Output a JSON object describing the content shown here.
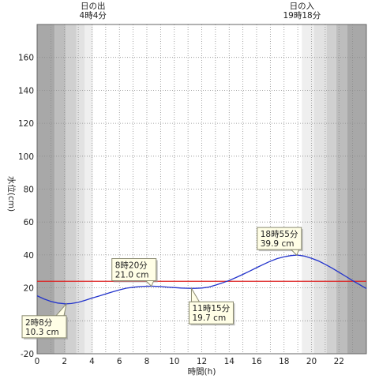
{
  "chart_data": {
    "type": "line",
    "title": "",
    "xlabel": "時間(h)",
    "ylabel": "水位(cm)",
    "xlim": [
      0,
      24
    ],
    "ylim": [
      -20,
      180
    ],
    "x_ticks": [
      0,
      2,
      4,
      6,
      8,
      10,
      12,
      14,
      16,
      18,
      20,
      22
    ],
    "x_tick_labels": [
      "0",
      "2",
      "4",
      "6",
      "8",
      "10",
      "12",
      "14",
      "16",
      "18",
      "20",
      "22"
    ],
    "y_ticks": [
      -20,
      0,
      20,
      40,
      60,
      80,
      100,
      120,
      140,
      160
    ],
    "y_tick_labels": [
      "-20",
      "0",
      "20",
      "40",
      "60",
      "80",
      "100",
      "120",
      "140",
      "160"
    ],
    "grid": true,
    "reference_line": {
      "y": 24,
      "color": "#dd2222"
    },
    "series": [
      {
        "color": "#2233cc",
        "x": [
          0,
          0.5,
          1,
          1.5,
          2,
          2.13,
          2.5,
          3,
          3.5,
          4,
          4.5,
          5,
          5.5,
          6,
          6.5,
          7,
          7.5,
          8,
          8.33,
          8.5,
          9,
          9.5,
          10,
          10.5,
          11,
          11.25,
          11.5,
          12,
          12.5,
          13,
          13.5,
          14,
          14.5,
          15,
          15.5,
          16,
          16.5,
          17,
          17.5,
          18,
          18.5,
          18.92,
          19,
          19.5,
          20,
          20.5,
          21,
          21.5,
          22,
          22.5,
          23,
          23.5,
          24
        ],
        "y": [
          15.2,
          13.3,
          11.8,
          10.8,
          10.35,
          10.3,
          10.5,
          11.2,
          12.4,
          13.8,
          15.0,
          16.3,
          17.6,
          18.8,
          19.8,
          20.4,
          20.8,
          21.0,
          21.0,
          21.0,
          20.8,
          20.5,
          20.2,
          19.9,
          19.75,
          19.7,
          19.7,
          19.9,
          20.5,
          21.7,
          23.0,
          24.5,
          26.3,
          28.2,
          30.2,
          32.3,
          34.3,
          36.2,
          37.8,
          38.9,
          39.6,
          39.9,
          39.9,
          39.3,
          38.0,
          36.4,
          34.3,
          32.0,
          29.5,
          27.0,
          24.4,
          22.0,
          19.6
        ]
      }
    ],
    "annotations": [
      {
        "x": 2.13,
        "y": 10.3,
        "time": "2時8分",
        "value": "10.3 cm",
        "position": "below-left"
      },
      {
        "x": 8.33,
        "y": 21.0,
        "time": "8時20分",
        "value": "21.0 cm",
        "position": "above-left"
      },
      {
        "x": 11.25,
        "y": 19.7,
        "time": "11時15分",
        "value": "19.7 cm",
        "position": "below"
      },
      {
        "x": 18.92,
        "y": 39.9,
        "time": "18時55分",
        "value": "39.9 cm",
        "position": "above-left"
      }
    ],
    "sun_events": [
      {
        "x": 4.07,
        "label": "日の出",
        "time": "4時4分",
        "shade_side": "before"
      },
      {
        "x": 19.3,
        "label": "日の入",
        "time": "19時18分",
        "shade_side": "after"
      }
    ]
  }
}
